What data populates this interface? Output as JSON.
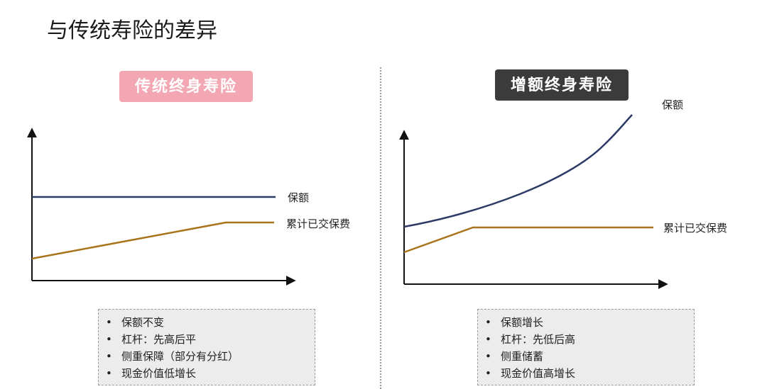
{
  "page": {
    "title": "与传统寿险的差异"
  },
  "left_panel": {
    "title": "传统终身寿险",
    "title_bg": "#f2a7b3",
    "labels": {
      "coverage": "保额",
      "premiums": "累计已交保费"
    },
    "notes": [
      "保额不变",
      "杠杆：先高后平",
      "侧重保障（部分有分红）",
      "现金价值低增长"
    ]
  },
  "right_panel": {
    "title": "增额终身寿险",
    "title_bg": "#3b3b3b",
    "labels": {
      "coverage": "保额",
      "premiums": "累计已交保费"
    },
    "notes": [
      "保额增长",
      "杠杆：先低后高",
      "侧重储蓄",
      "现金价值高增长"
    ]
  },
  "colors": {
    "coverage_line": "#2e3a66",
    "premium_line": "#a8741a",
    "axis": "#111111"
  },
  "bullet": "•"
}
